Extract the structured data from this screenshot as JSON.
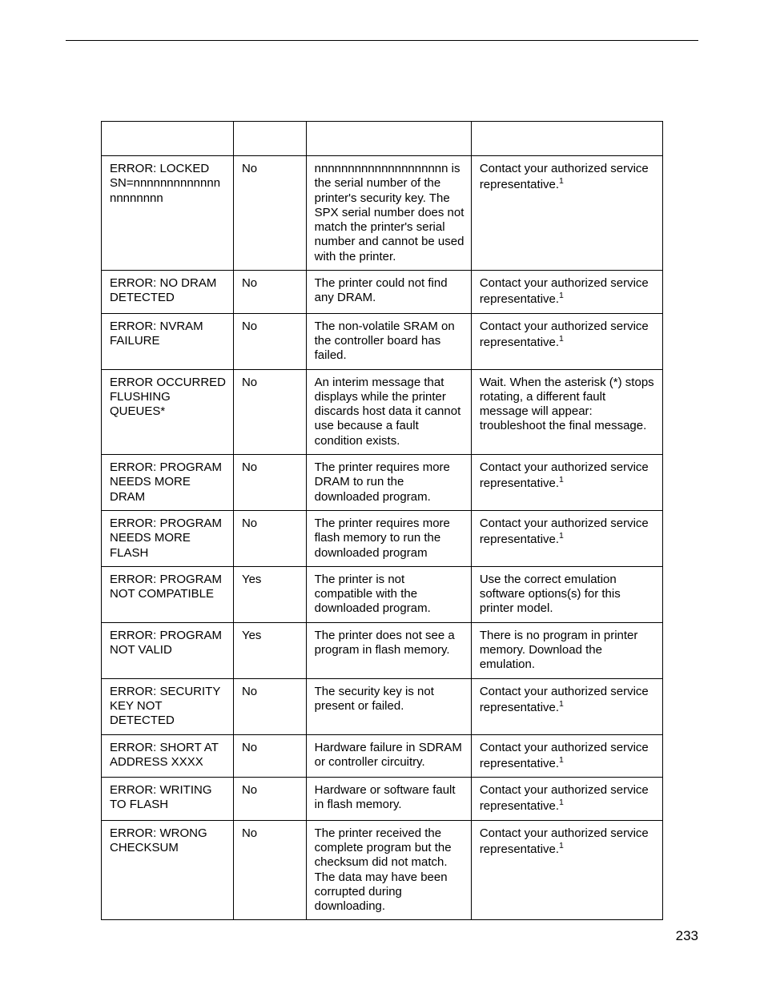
{
  "page_number": "233",
  "table": {
    "columns": 4,
    "rows": [
      {
        "message": "ERROR: LOCKED SN=nnnnnnnnnnnnnnnnnnnnn",
        "can_clear": "No",
        "explanation": "nnnnnnnnnnnnnnnnnnnn is the serial number of the printer's security key. The SPX serial number does not match the printer's serial number and cannot be used with the printer.",
        "solution": "Contact your authorized service representative.",
        "solution_footnote": "1"
      },
      {
        "message": "ERROR: NO DRAM DETECTED",
        "can_clear": "No",
        "explanation": "The printer could not find any DRAM.",
        "solution": "Contact your authorized service representative.",
        "solution_footnote": "1"
      },
      {
        "message": "ERROR: NVRAM FAILURE",
        "can_clear": "No",
        "explanation": "The non-volatile SRAM on the controller board has failed.",
        "solution": "Contact your authorized service representative.",
        "solution_footnote": "1"
      },
      {
        "message": "ERROR OCCURRED FLUSHING QUEUES*",
        "can_clear": "No",
        "explanation": "An interim message that displays while the printer discards host data it cannot use because a fault condition exists.",
        "solution": "Wait. When the asterisk (*) stops rotating, a different fault message will appear: troubleshoot the final message.",
        "solution_footnote": ""
      },
      {
        "message": "ERROR: PROGRAM NEEDS MORE DRAM",
        "can_clear": "No",
        "explanation": "The printer requires more DRAM to run the downloaded program.",
        "solution": "Contact your authorized service representative.",
        "solution_footnote": "1"
      },
      {
        "message": "ERROR: PROGRAM NEEDS MORE FLASH",
        "can_clear": "No",
        "explanation": "The printer requires more flash memory to run the downloaded program",
        "solution": "Contact your authorized service representative.",
        "solution_footnote": "1"
      },
      {
        "message": "ERROR: PROGRAM NOT COMPATIBLE",
        "can_clear": "Yes",
        "explanation": "The printer is not compatible with the downloaded program.",
        "solution": "Use the correct emulation software options(s) for this printer model.",
        "solution_footnote": ""
      },
      {
        "message": "ERROR: PROGRAM NOT VALID",
        "can_clear": "Yes",
        "explanation": "The printer does not see a program in flash memory.",
        "solution": "There is no program in printer memory. Download the emulation.",
        "solution_footnote": ""
      },
      {
        "message": "ERROR: SECURITY KEY NOT DETECTED",
        "can_clear": "No",
        "explanation": "The security key is not present or failed.",
        "solution": "Contact your authorized service representative.",
        "solution_footnote": "1"
      },
      {
        "message": "ERROR: SHORT AT ADDRESS XXXX",
        "can_clear": "No",
        "explanation": "Hardware failure in SDRAM or controller circuitry.",
        "solution": "Contact your authorized service representative.",
        "solution_footnote": "1"
      },
      {
        "message": "ERROR: WRITING TO FLASH",
        "can_clear": "No",
        "explanation": "Hardware or software fault in flash memory.",
        "solution": "Contact your authorized service representative.",
        "solution_footnote": "1"
      },
      {
        "message": "ERROR: WRONG CHECKSUM",
        "can_clear": "No",
        "explanation": "The printer received the complete program but the checksum did not match. The data may have been corrupted during downloading.",
        "solution": "Contact your authorized service representative.",
        "solution_footnote": "1"
      }
    ]
  }
}
